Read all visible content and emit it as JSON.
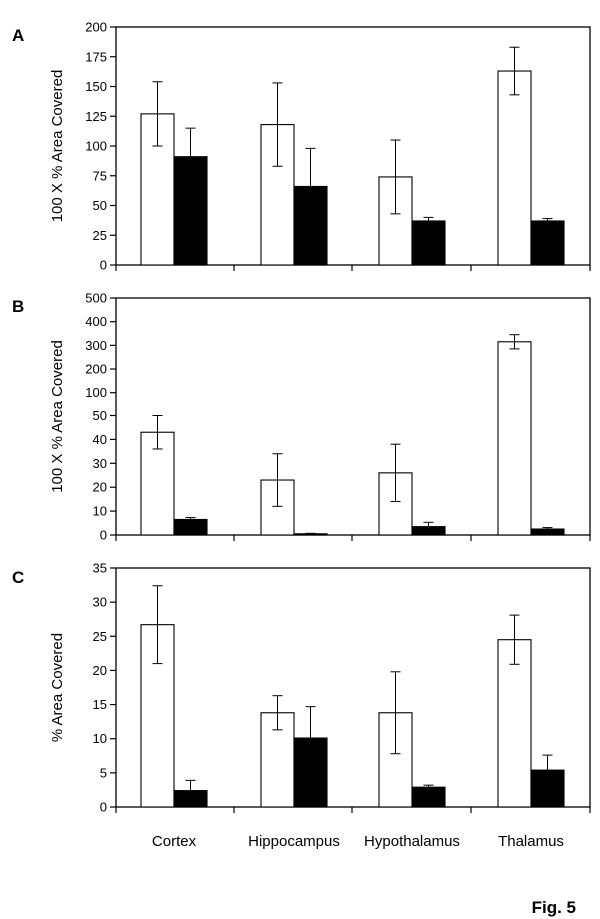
{
  "figure_label": "Fig. 5",
  "categories": [
    "Cortex",
    "Hippocampus",
    "Hypothalamus",
    "Thalamus"
  ],
  "chart_data": [
    {
      "type": "bar",
      "panel": "A",
      "ylabel": "100 X % Area Covered",
      "ylim": [
        0,
        200
      ],
      "y_ticks": [
        "0",
        "25",
        "50",
        "75",
        "100",
        "125",
        "150",
        "175",
        "200"
      ],
      "categories": [
        "Cortex",
        "Hippocampus",
        "Hypothalamus",
        "Thalamus"
      ],
      "series": [
        {
          "fill": "white",
          "values": [
            127,
            118,
            74,
            163
          ],
          "errors": [
            27,
            35,
            31,
            20
          ]
        },
        {
          "fill": "black",
          "values": [
            91,
            66,
            37,
            37
          ],
          "errors": [
            24,
            32,
            3,
            2
          ]
        }
      ]
    },
    {
      "type": "bar",
      "panel": "B",
      "ylabel": "100 X % Area Covered",
      "axis_break": "0-50 linear, 100-500 compressed",
      "ylim": [
        0,
        500
      ],
      "y_ticks": [
        "0",
        "10",
        "20",
        "30",
        "40",
        "50",
        "100",
        "200",
        "300",
        "400",
        "500"
      ],
      "categories": [
        "Cortex",
        "Hippocampus",
        "Hypothalamus",
        "Thalamus"
      ],
      "series": [
        {
          "fill": "white",
          "values": [
            43,
            23,
            26,
            315
          ],
          "errors": [
            7,
            11,
            12,
            30
          ]
        },
        {
          "fill": "black",
          "values": [
            6.5,
            0.5,
            3.5,
            2.5
          ],
          "errors": [
            0.8,
            0.2,
            1.8,
            0.6
          ]
        }
      ]
    },
    {
      "type": "bar",
      "panel": "C",
      "ylabel": "% Area Covered",
      "ylim": [
        0,
        35
      ],
      "y_ticks": [
        "0",
        "5",
        "10",
        "15",
        "20",
        "25",
        "30",
        "35"
      ],
      "categories": [
        "Cortex",
        "Hippocampus",
        "Hypothalamus",
        "Thalamus"
      ],
      "series": [
        {
          "fill": "white",
          "values": [
            26.7,
            13.8,
            13.8,
            24.5
          ],
          "errors": [
            5.7,
            2.5,
            6.0,
            3.6
          ]
        },
        {
          "fill": "black",
          "values": [
            2.4,
            10.1,
            2.9,
            5.4
          ],
          "errors": [
            1.5,
            4.6,
            0.3,
            2.2
          ]
        }
      ]
    }
  ]
}
